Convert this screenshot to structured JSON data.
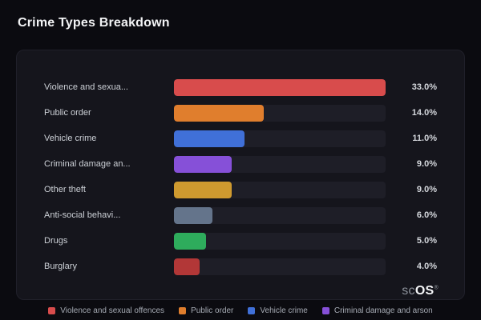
{
  "title": "Crime Types Breakdown",
  "chart_data": {
    "type": "bar",
    "orientation": "horizontal",
    "categories": [
      "Violence and sexua...",
      "Public order",
      "Vehicle crime",
      "Criminal damage an...",
      "Other theft",
      "Anti-social behavi...",
      "Drugs",
      "Burglary"
    ],
    "values": [
      33.0,
      14.0,
      11.0,
      9.0,
      9.0,
      6.0,
      5.0,
      4.0
    ],
    "value_labels": [
      "33.0%",
      "14.0%",
      "11.0%",
      "9.0%",
      "9.0%",
      "6.0%",
      "5.0%",
      "4.0%"
    ],
    "colors": [
      "#d84c4c",
      "#e07e2d",
      "#4070d8",
      "#8650d8",
      "#cf9a2f",
      "#64748b",
      "#2eac5c",
      "#b23737"
    ],
    "xlim": [
      0,
      33
    ],
    "grid": false,
    "legend_position": "bottom"
  },
  "legend": [
    {
      "label": "Violence and sexual offences",
      "color": "#d84c4c"
    },
    {
      "label": "Public order",
      "color": "#e07e2d"
    },
    {
      "label": "Vehicle crime",
      "color": "#4070d8"
    },
    {
      "label": "Criminal damage and arson",
      "color": "#8650d8"
    }
  ],
  "logo": {
    "prefix": "sc",
    "suffix": "OS",
    "registered": "®"
  }
}
